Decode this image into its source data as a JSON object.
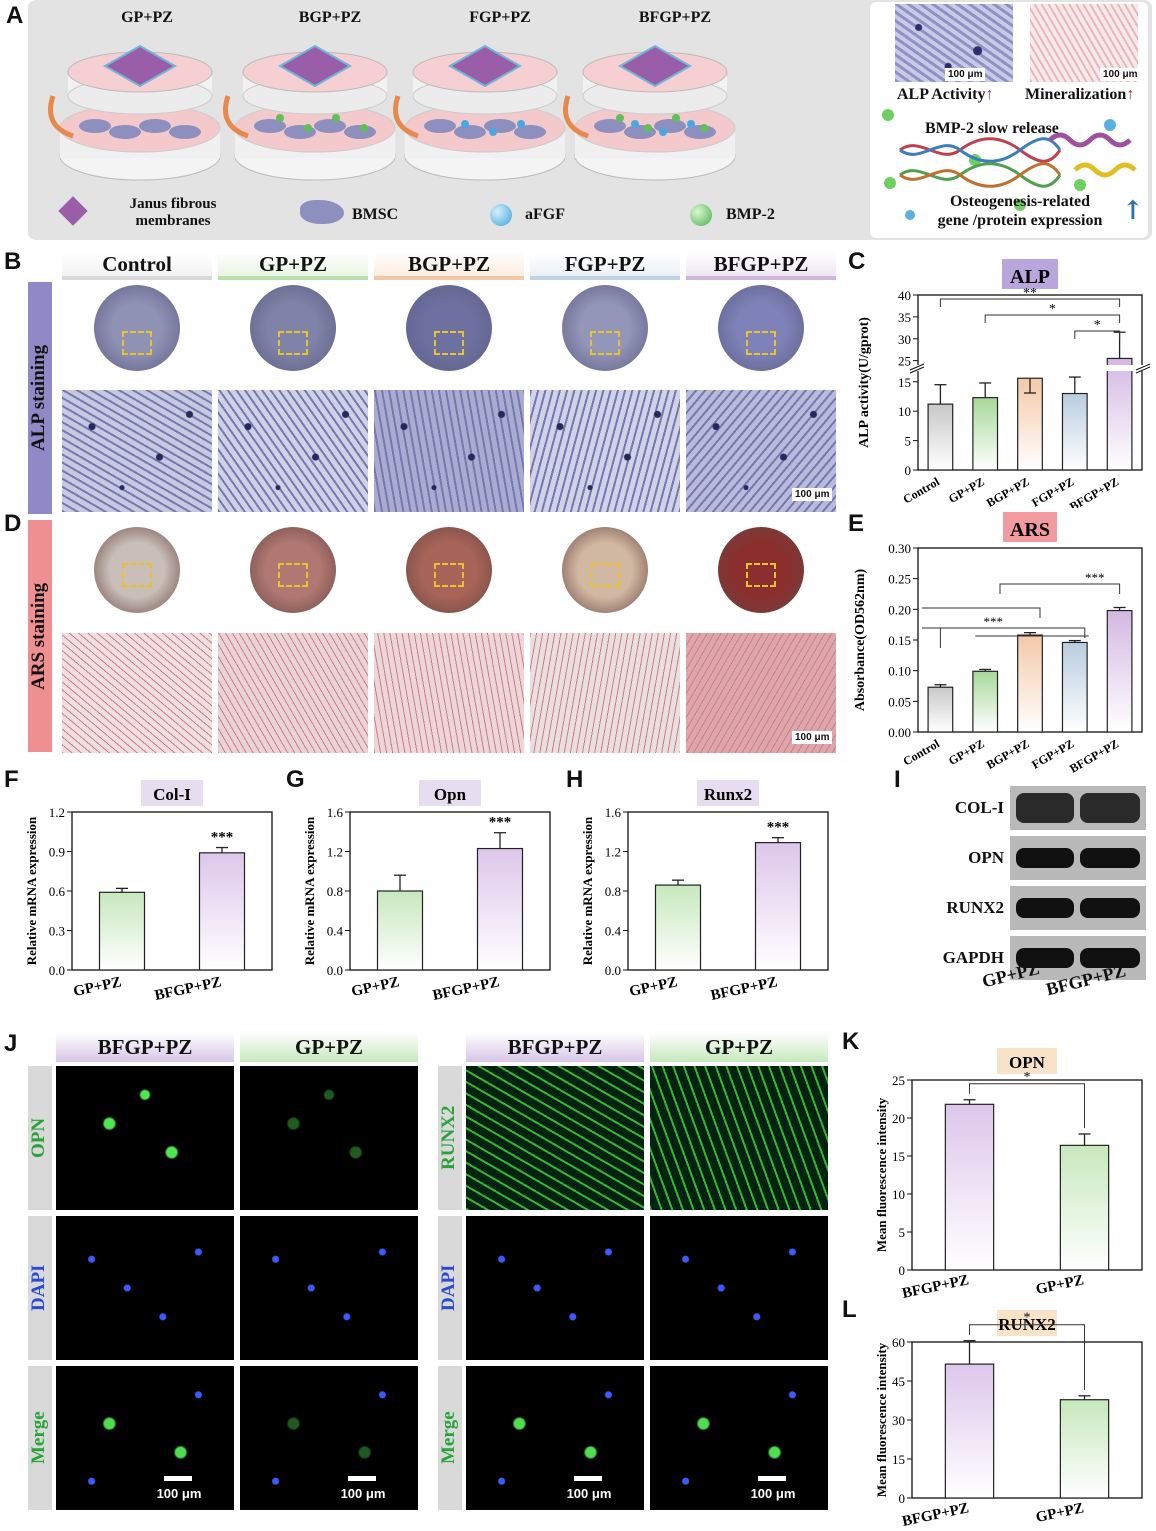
{
  "panel_letters": [
    "A",
    "B",
    "C",
    "D",
    "E",
    "F",
    "G",
    "H",
    "I",
    "J",
    "K",
    "L"
  ],
  "scheme": {
    "groups": [
      "GP+PZ",
      "BGP+PZ",
      "FGP+PZ",
      "BFGP+PZ"
    ],
    "legend": {
      "membrane": "Janus fibrous membranes",
      "cell": "BMSC",
      "afgf": "aFGF",
      "bmp2": "BMP-2"
    },
    "scale": "100 μm",
    "alp_activity": "ALP Activity",
    "mineralization": "Mineralization",
    "bmp_release": "BMP-2 slow release",
    "osteo_line1": "Osteogenesis-related",
    "osteo_line2": "gene /protein expression"
  },
  "staining": {
    "groups": [
      "Control",
      "GP+PZ",
      "BGP+PZ",
      "FGP+PZ",
      "BFGP+PZ"
    ],
    "alp_label": "ALP staining",
    "ars_label": "ARS staining",
    "scale": "100 μm",
    "header_colors": [
      "#d9d9d9",
      "#b9dfae",
      "#f3c7a6",
      "#c1d3e2",
      "#cdb5dc"
    ]
  },
  "western": {
    "bands": [
      "COL-I",
      "OPN",
      "RUNX2",
      "GAPDH"
    ],
    "lanes": [
      "GP+PZ",
      "BFGP+PZ"
    ]
  },
  "immuno": {
    "left_groups": [
      "BFGP+PZ",
      "GP+PZ"
    ],
    "right_groups": [
      "BFGP+PZ",
      "GP+PZ"
    ],
    "left_rows": [
      "OPN",
      "DAPI",
      "Merge"
    ],
    "right_rows": [
      "RUNX2",
      "DAPI",
      "Merge"
    ],
    "scale": "100 μm"
  },
  "chart_data": [
    {
      "id": "C",
      "type": "bar",
      "title": "ALP",
      "ylabel": "ALP activity(U/gprot)",
      "categories": [
        "Control",
        "GP+PZ",
        "BGP+PZ",
        "FGP+PZ",
        "BFGP+PZ"
      ],
      "values": [
        11.2,
        12.3,
        15.6,
        13.0,
        25.5
      ],
      "errors": [
        3.3,
        2.5,
        2.0,
        2.8,
        6.0
      ],
      "ybreak": [
        17,
        24
      ],
      "yticks": [
        0,
        5,
        10,
        15,
        25,
        30,
        35,
        40
      ],
      "annotations": [
        "**",
        "*",
        "*"
      ],
      "colors": [
        "#c8c8c8",
        "#a7d89b",
        "#f4c9a8",
        "#b9cde0",
        "#d3b8e2"
      ]
    },
    {
      "id": "E",
      "type": "bar",
      "title": "ARS",
      "ylabel": "Absorbance(OD562nm)",
      "categories": [
        "Control",
        "GP+PZ",
        "BGP+PZ",
        "FGP+PZ",
        "BFGP+PZ"
      ],
      "values": [
        0.073,
        0.099,
        0.158,
        0.146,
        0.198
      ],
      "errors": [
        0.004,
        0.003,
        0.004,
        0.003,
        0.005
      ],
      "ylim": [
        0,
        0.3
      ],
      "yticks": [
        0.0,
        0.05,
        0.1,
        0.15,
        0.2,
        0.25,
        0.3
      ],
      "annotations": [
        "***",
        "***"
      ],
      "colors": [
        "#c8c8c8",
        "#a7d89b",
        "#f4c9a8",
        "#b9cde0",
        "#d3b8e2"
      ]
    },
    {
      "id": "F",
      "type": "bar",
      "title": "Col-I",
      "ylabel": "Relative mRNA expression",
      "categories": [
        "GP+PZ",
        "BFGP+PZ"
      ],
      "values": [
        0.59,
        0.89
      ],
      "errors": [
        0.03,
        0.04
      ],
      "ylim": [
        0,
        1.2
      ],
      "yticks": [
        0.0,
        0.3,
        0.6,
        0.9,
        1.2
      ],
      "annotations": [
        "***"
      ]
    },
    {
      "id": "G",
      "type": "bar",
      "title": "Opn",
      "ylabel": "Relative mRNA expression",
      "categories": [
        "GP+PZ",
        "BFGP+PZ"
      ],
      "values": [
        0.8,
        1.23
      ],
      "errors": [
        0.16,
        0.16
      ],
      "ylim": [
        0,
        1.6
      ],
      "yticks": [
        0.0,
        0.4,
        0.8,
        1.2,
        1.6
      ],
      "annotations": [
        "***"
      ]
    },
    {
      "id": "H",
      "type": "bar",
      "title": "Runx2",
      "ylabel": "Relative mRNA expression",
      "categories": [
        "GP+PZ",
        "BFGP+PZ"
      ],
      "values": [
        0.86,
        1.29
      ],
      "errors": [
        0.05,
        0.05
      ],
      "ylim": [
        0,
        1.6
      ],
      "yticks": [
        0.0,
        0.4,
        0.8,
        1.2,
        1.6
      ],
      "annotations": [
        "***"
      ]
    },
    {
      "id": "K",
      "type": "bar",
      "title": "OPN",
      "ylabel": "Mean fluorescence intensity",
      "categories": [
        "BFGP+PZ",
        "GP+PZ"
      ],
      "values": [
        21.8,
        16.4
      ],
      "errors": [
        0.6,
        1.5
      ],
      "ylim": [
        0,
        25
      ],
      "yticks": [
        0,
        5,
        10,
        15,
        20,
        25
      ],
      "annotations": [
        "*"
      ]
    },
    {
      "id": "L",
      "type": "bar",
      "title": "RUNX2",
      "ylabel": "Mean fluorescence intensity",
      "categories": [
        "BFGP+PZ",
        "GP+PZ"
      ],
      "values": [
        51.5,
        37.8
      ],
      "errors": [
        9.0,
        1.5
      ],
      "ylim": [
        0,
        60
      ],
      "yticks": [
        0,
        15,
        30,
        45,
        60
      ],
      "annotations": [
        "*"
      ]
    }
  ]
}
